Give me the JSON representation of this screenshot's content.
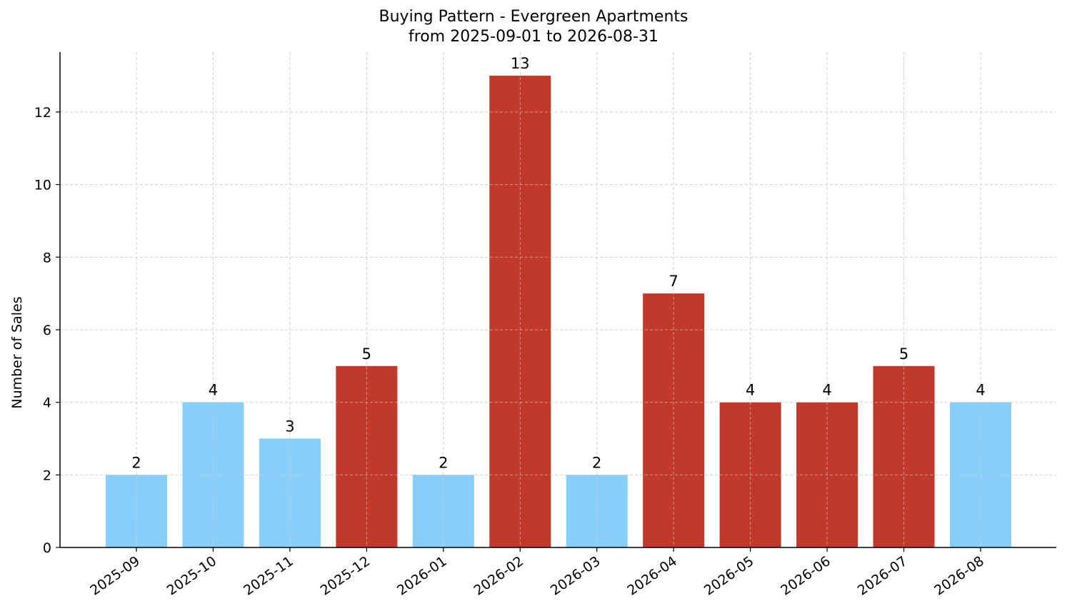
{
  "chart_data": {
    "type": "bar",
    "title": "Buying Pattern - Evergreen Apartments",
    "subtitle": "from 2025-09-01 to 2026-08-31",
    "xlabel": "",
    "ylabel": "Number of Sales",
    "ylim": [
      0,
      13.65
    ],
    "yticks": [
      0,
      2,
      4,
      6,
      8,
      10,
      12
    ],
    "grid": true,
    "categories": [
      "2025-09",
      "2025-10",
      "2025-11",
      "2025-12",
      "2026-01",
      "2026-02",
      "2026-03",
      "2026-04",
      "2026-05",
      "2026-06",
      "2026-07",
      "2026-08"
    ],
    "values": [
      2,
      4,
      3,
      5,
      2,
      13,
      2,
      7,
      4,
      4,
      5,
      4
    ],
    "bar_colors": [
      "#87CEFA",
      "#87CEFA",
      "#87CEFA",
      "#C0392B",
      "#87CEFA",
      "#C0392B",
      "#87CEFA",
      "#C0392B",
      "#C0392B",
      "#C0392B",
      "#C0392B",
      "#87CEFA"
    ],
    "colors": {
      "light": "#87CEFA",
      "dark": "#C0392B",
      "grid": "#d3d3d3",
      "axis": "#000000"
    }
  }
}
